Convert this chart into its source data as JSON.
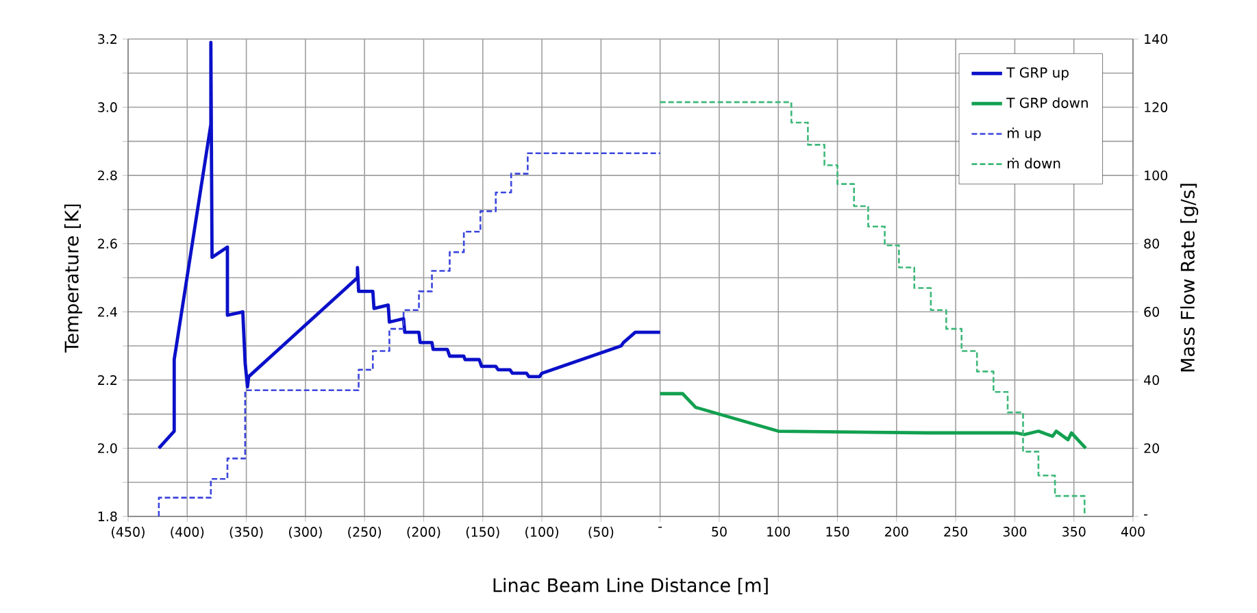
{
  "chart_data": {
    "type": "line",
    "xlabel": "Linac Beam Line Distance [m]",
    "ylabel": "Temperature [K]",
    "y2label": "Mass Flow Rate [g/s]",
    "xlim": [
      -450,
      400
    ],
    "ylim": [
      1.8,
      3.2
    ],
    "y2lim": [
      0,
      140
    ],
    "xticks": [
      {
        "value": -450,
        "label": "(450)"
      },
      {
        "value": -400,
        "label": "(400)"
      },
      {
        "value": -350,
        "label": "(350)"
      },
      {
        "value": -300,
        "label": "(300)"
      },
      {
        "value": -250,
        "label": "(250)"
      },
      {
        "value": -200,
        "label": "(200)"
      },
      {
        "value": -150,
        "label": "(150)"
      },
      {
        "value": -100,
        "label": "(100)"
      },
      {
        "value": -50,
        "label": "(50)"
      },
      {
        "value": 0,
        "label": "-"
      },
      50,
      100,
      150,
      200,
      250,
      300,
      350,
      400
    ],
    "yticks": [
      1.8,
      {
        "value": 1.9,
        "label": null
      },
      {
        "value": 2.0,
        "label": "2.0"
      },
      {
        "value": 2.1,
        "label": null
      },
      2.2,
      {
        "value": 2.3,
        "label": null
      },
      2.4,
      {
        "value": 2.5,
        "label": null
      },
      2.6,
      {
        "value": 2.7,
        "label": null
      },
      2.8,
      {
        "value": 2.9,
        "label": null
      },
      {
        "value": 3.0,
        "label": "3.0"
      },
      {
        "value": 3.1,
        "label": null
      },
      3.2
    ],
    "y2ticks": [
      {
        "value": 0,
        "label": "-"
      },
      20,
      40,
      60,
      80,
      100,
      120,
      140
    ],
    "grid": true,
    "legend": "top right",
    "marker": "none",
    "series": [
      {
        "name": "T GRP up",
        "color": "#0a10c8",
        "type": "line",
        "line_style": "solid",
        "x": [
          -424,
          -411,
          -411,
          -380,
          -380,
          -379,
          -366,
          -366,
          -353,
          -351,
          -349,
          -348,
          -256,
          -256,
          -255,
          -243,
          -242,
          -230,
          -229,
          -217,
          -216,
          -204,
          -203,
          -193,
          -192,
          -180,
          -178,
          -166,
          -165,
          -153,
          -151,
          -139,
          -137,
          -127,
          -125,
          -113,
          -111,
          -102,
          -100,
          -33,
          -31,
          -21,
          0
        ],
        "values": [
          2.0,
          2.05,
          2.26,
          2.95,
          3.19,
          2.56,
          2.59,
          2.39,
          2.4,
          2.25,
          2.18,
          2.21,
          2.5,
          2.53,
          2.46,
          2.46,
          2.41,
          2.42,
          2.37,
          2.38,
          2.34,
          2.34,
          2.31,
          2.31,
          2.29,
          2.29,
          2.27,
          2.27,
          2.26,
          2.26,
          2.24,
          2.24,
          2.23,
          2.23,
          2.22,
          2.22,
          2.21,
          2.21,
          2.22,
          2.3,
          2.31,
          2.34,
          2.34
        ]
      },
      {
        "name": "T GRP down",
        "color": "#12a050",
        "type": "line",
        "line_style": "solid",
        "x": [
          0,
          10,
          19,
          30,
          100,
          227,
          301,
          308,
          320,
          332,
          335,
          345,
          348,
          360
        ],
        "values": [
          2.16,
          2.16,
          2.16,
          2.12,
          2.05,
          2.045,
          2.045,
          2.04,
          2.05,
          2.035,
          2.05,
          2.025,
          2.045,
          2.0
        ]
      },
      {
        "name": "ṁ up",
        "color": "#3c46dc",
        "type": "step",
        "line_style": "dashed",
        "axis": "y2",
        "x": [
          -424,
          -424,
          -380,
          -366,
          -351,
          -255,
          -243,
          -229,
          -217,
          -204,
          -193,
          -178,
          -166,
          -152,
          -139,
          -126,
          -112,
          0
        ],
        "values": [
          0,
          5.5,
          11,
          17,
          37,
          43,
          48.5,
          55,
          60.5,
          66,
          72,
          77.5,
          83.5,
          89.5,
          95,
          100.5,
          106.5,
          106.5
        ]
      },
      {
        "name": "ṁ down",
        "color": "#3cb878",
        "type": "step",
        "line_style": "dashed",
        "axis": "y2",
        "x": [
          0,
          111,
          125,
          139,
          150,
          164,
          176,
          190,
          202,
          215,
          229,
          242,
          255,
          268,
          282,
          294,
          307,
          320,
          334,
          359
        ],
        "values": [
          121.5,
          115.5,
          109,
          103,
          97.5,
          91,
          85,
          79.5,
          73,
          67,
          60.5,
          55,
          48.5,
          42.5,
          36.5,
          30.5,
          19,
          12,
          6,
          0
        ]
      }
    ]
  }
}
